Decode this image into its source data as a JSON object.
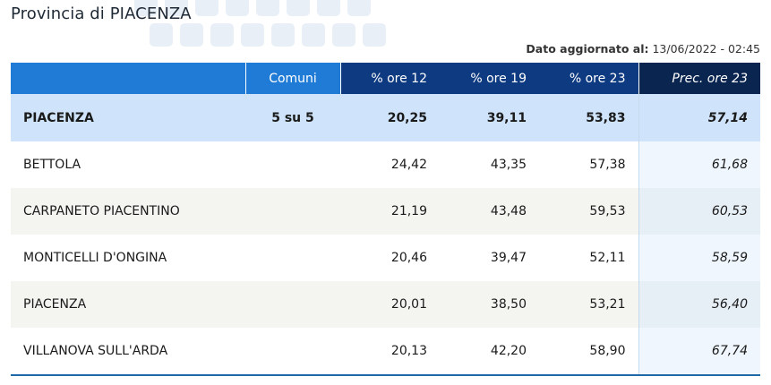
{
  "header": {
    "title": "Provincia di PIACENZA",
    "updated_label": "Dato aggiornato al:",
    "updated_value": "13/06/2022 - 02:45"
  },
  "table": {
    "columns": {
      "comuni": "Comuni",
      "p12": "% ore 12",
      "p19": "% ore 19",
      "p23": "% ore 23",
      "prec": "Prec. ore 23"
    },
    "summary": {
      "name": "PIACENZA",
      "comuni": "5 su 5",
      "p12": "20,25",
      "p19": "39,11",
      "p23": "53,83",
      "prec": "57,14"
    },
    "rows": [
      {
        "name": "BETTOLA",
        "p12": "24,42",
        "p19": "43,35",
        "p23": "57,38",
        "prec": "61,68"
      },
      {
        "name": "CARPANETO PIACENTINO",
        "p12": "21,19",
        "p19": "43,48",
        "p23": "59,53",
        "prec": "60,53"
      },
      {
        "name": "MONTICELLI D'ONGINA",
        "p12": "20,46",
        "p19": "39,47",
        "p23": "52,11",
        "prec": "58,59"
      },
      {
        "name": "PIACENZA",
        "p12": "20,01",
        "p19": "38,50",
        "p23": "53,21",
        "prec": "56,40"
      },
      {
        "name": "VILLANOVA SULL'ARDA",
        "p12": "20,13",
        "p19": "42,20",
        "p23": "58,90",
        "prec": "67,74"
      }
    ]
  }
}
